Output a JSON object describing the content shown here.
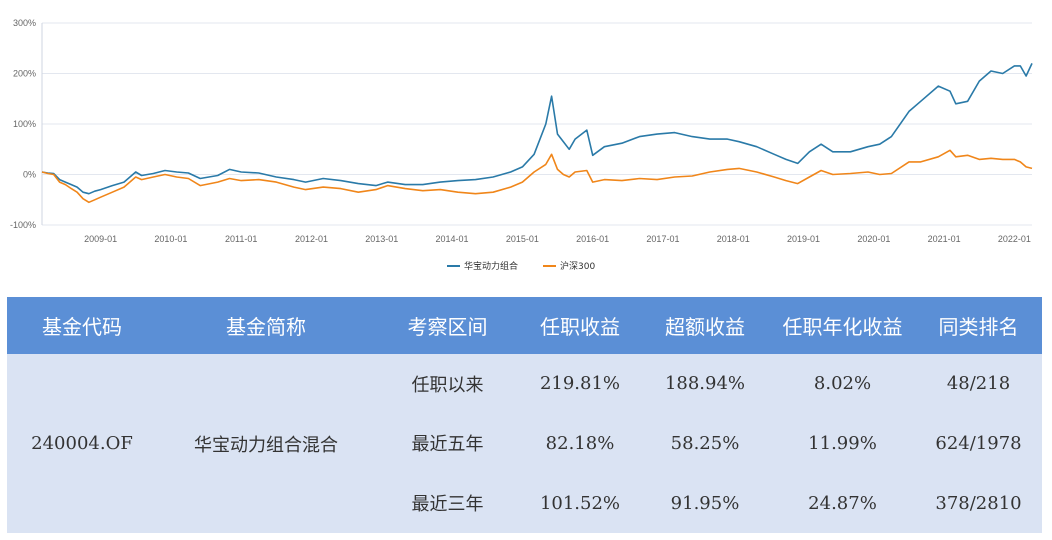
{
  "chart_data": {
    "type": "line",
    "y_ticks": [
      "300%",
      "200%",
      "100%",
      "0%",
      "-100%"
    ],
    "y_tick_values": [
      300,
      200,
      100,
      0,
      -100
    ],
    "ylim": [
      -100,
      300
    ],
    "x_ticks": [
      "2009-01",
      "2010-01",
      "2011-01",
      "2012-01",
      "2013-01",
      "2014-01",
      "2015-01",
      "2016-01",
      "2017-01",
      "2018-01",
      "2019-01",
      "2020-01",
      "2021-01",
      "2022-01"
    ],
    "xlim": [
      "2008-03",
      "2022-04"
    ],
    "grid": true,
    "legend_position": "bottom-center",
    "series": [
      {
        "name": "华宝动力组合",
        "color": "#2a7aa8",
        "points": [
          [
            "2008-03",
            5
          ],
          [
            "2008-04",
            3
          ],
          [
            "2008-05",
            2
          ],
          [
            "2008-06",
            -10
          ],
          [
            "2008-07",
            -15
          ],
          [
            "2008-08",
            -20
          ],
          [
            "2008-09",
            -25
          ],
          [
            "2008-10",
            -35
          ],
          [
            "2008-11",
            -38
          ],
          [
            "2008-12",
            -33
          ],
          [
            "2009-01",
            -30
          ],
          [
            "2009-03",
            -22
          ],
          [
            "2009-05",
            -15
          ],
          [
            "2009-07",
            5
          ],
          [
            "2009-08",
            -2
          ],
          [
            "2009-10",
            2
          ],
          [
            "2009-12",
            8
          ],
          [
            "2010-02",
            5
          ],
          [
            "2010-04",
            3
          ],
          [
            "2010-06",
            -8
          ],
          [
            "2010-09",
            -2
          ],
          [
            "2010-11",
            10
          ],
          [
            "2011-01",
            5
          ],
          [
            "2011-04",
            3
          ],
          [
            "2011-07",
            -5
          ],
          [
            "2011-10",
            -10
          ],
          [
            "2011-12",
            -15
          ],
          [
            "2012-03",
            -8
          ],
          [
            "2012-06",
            -12
          ],
          [
            "2012-09",
            -18
          ],
          [
            "2012-12",
            -22
          ],
          [
            "2013-02",
            -15
          ],
          [
            "2013-05",
            -20
          ],
          [
            "2013-08",
            -20
          ],
          [
            "2013-11",
            -15
          ],
          [
            "2014-02",
            -12
          ],
          [
            "2014-05",
            -10
          ],
          [
            "2014-08",
            -5
          ],
          [
            "2014-11",
            5
          ],
          [
            "2015-01",
            15
          ],
          [
            "2015-03",
            40
          ],
          [
            "2015-05",
            100
          ],
          [
            "2015-06",
            155
          ],
          [
            "2015-07",
            80
          ],
          [
            "2015-08",
            65
          ],
          [
            "2015-09",
            50
          ],
          [
            "2015-10",
            70
          ],
          [
            "2015-12",
            88
          ],
          [
            "2016-01",
            38
          ],
          [
            "2016-03",
            55
          ],
          [
            "2016-06",
            62
          ],
          [
            "2016-09",
            75
          ],
          [
            "2016-12",
            80
          ],
          [
            "2017-03",
            83
          ],
          [
            "2017-06",
            75
          ],
          [
            "2017-09",
            70
          ],
          [
            "2017-12",
            70
          ],
          [
            "2018-02",
            65
          ],
          [
            "2018-05",
            55
          ],
          [
            "2018-08",
            40
          ],
          [
            "2018-10",
            30
          ],
          [
            "2018-12",
            22
          ],
          [
            "2019-02",
            45
          ],
          [
            "2019-04",
            60
          ],
          [
            "2019-06",
            45
          ],
          [
            "2019-09",
            45
          ],
          [
            "2019-12",
            55
          ],
          [
            "2020-02",
            60
          ],
          [
            "2020-04",
            75
          ],
          [
            "2020-07",
            125
          ],
          [
            "2020-09",
            145
          ],
          [
            "2020-12",
            175
          ],
          [
            "2021-02",
            165
          ],
          [
            "2021-03",
            140
          ],
          [
            "2021-05",
            145
          ],
          [
            "2021-07",
            185
          ],
          [
            "2021-09",
            205
          ],
          [
            "2021-11",
            200
          ],
          [
            "2022-01",
            215
          ],
          [
            "2022-02",
            215
          ],
          [
            "2022-03",
            195
          ],
          [
            "2022-04",
            220
          ]
        ]
      },
      {
        "name": "沪深300",
        "color": "#f0861a",
        "points": [
          [
            "2008-03",
            5
          ],
          [
            "2008-04",
            2
          ],
          [
            "2008-05",
            0
          ],
          [
            "2008-06",
            -15
          ],
          [
            "2008-07",
            -20
          ],
          [
            "2008-08",
            -28
          ],
          [
            "2008-09",
            -35
          ],
          [
            "2008-10",
            -48
          ],
          [
            "2008-11",
            -55
          ],
          [
            "2008-12",
            -50
          ],
          [
            "2009-01",
            -45
          ],
          [
            "2009-03",
            -35
          ],
          [
            "2009-05",
            -25
          ],
          [
            "2009-07",
            -5
          ],
          [
            "2009-08",
            -10
          ],
          [
            "2009-10",
            -5
          ],
          [
            "2009-12",
            0
          ],
          [
            "2010-02",
            -5
          ],
          [
            "2010-04",
            -8
          ],
          [
            "2010-06",
            -22
          ],
          [
            "2010-09",
            -15
          ],
          [
            "2010-11",
            -8
          ],
          [
            "2011-01",
            -12
          ],
          [
            "2011-04",
            -10
          ],
          [
            "2011-07",
            -15
          ],
          [
            "2011-10",
            -25
          ],
          [
            "2011-12",
            -30
          ],
          [
            "2012-03",
            -25
          ],
          [
            "2012-06",
            -28
          ],
          [
            "2012-09",
            -35
          ],
          [
            "2012-12",
            -30
          ],
          [
            "2013-02",
            -22
          ],
          [
            "2013-05",
            -28
          ],
          [
            "2013-08",
            -32
          ],
          [
            "2013-11",
            -30
          ],
          [
            "2014-02",
            -35
          ],
          [
            "2014-05",
            -38
          ],
          [
            "2014-08",
            -35
          ],
          [
            "2014-11",
            -25
          ],
          [
            "2015-01",
            -15
          ],
          [
            "2015-03",
            5
          ],
          [
            "2015-05",
            20
          ],
          [
            "2015-06",
            40
          ],
          [
            "2015-07",
            10
          ],
          [
            "2015-08",
            0
          ],
          [
            "2015-09",
            -5
          ],
          [
            "2015-10",
            5
          ],
          [
            "2015-12",
            8
          ],
          [
            "2016-01",
            -15
          ],
          [
            "2016-03",
            -10
          ],
          [
            "2016-06",
            -12
          ],
          [
            "2016-09",
            -8
          ],
          [
            "2016-12",
            -10
          ],
          [
            "2017-03",
            -5
          ],
          [
            "2017-06",
            -3
          ],
          [
            "2017-09",
            5
          ],
          [
            "2017-12",
            10
          ],
          [
            "2018-02",
            12
          ],
          [
            "2018-05",
            5
          ],
          [
            "2018-08",
            -5
          ],
          [
            "2018-10",
            -12
          ],
          [
            "2018-12",
            -18
          ],
          [
            "2019-02",
            -5
          ],
          [
            "2019-04",
            8
          ],
          [
            "2019-06",
            0
          ],
          [
            "2019-09",
            2
          ],
          [
            "2019-12",
            5
          ],
          [
            "2020-02",
            0
          ],
          [
            "2020-04",
            2
          ],
          [
            "2020-07",
            25
          ],
          [
            "2020-09",
            25
          ],
          [
            "2020-12",
            35
          ],
          [
            "2021-02",
            48
          ],
          [
            "2021-03",
            35
          ],
          [
            "2021-05",
            38
          ],
          [
            "2021-07",
            30
          ],
          [
            "2021-09",
            32
          ],
          [
            "2021-11",
            30
          ],
          [
            "2022-01",
            30
          ],
          [
            "2022-02",
            25
          ],
          [
            "2022-03",
            15
          ],
          [
            "2022-04",
            12
          ]
        ]
      }
    ]
  },
  "table": {
    "headers": [
      "基金代码",
      "基金简称",
      "考察区间",
      "任职收益",
      "超额收益",
      "任职年化收益",
      "同类排名"
    ],
    "fund_code": "240004.OF",
    "fund_name": "华宝动力组合混合",
    "rows": [
      {
        "period": "任职以来",
        "tenure_return": "219.81%",
        "excess_return": "188.94%",
        "annualized": "8.02%",
        "rank": "48/218"
      },
      {
        "period": "最近五年",
        "tenure_return": "82.18%",
        "excess_return": "58.25%",
        "annualized": "11.99%",
        "rank": "624/1978"
      },
      {
        "period": "最近三年",
        "tenure_return": "101.52%",
        "excess_return": "91.95%",
        "annualized": "24.87%",
        "rank": "378/2810"
      }
    ]
  }
}
